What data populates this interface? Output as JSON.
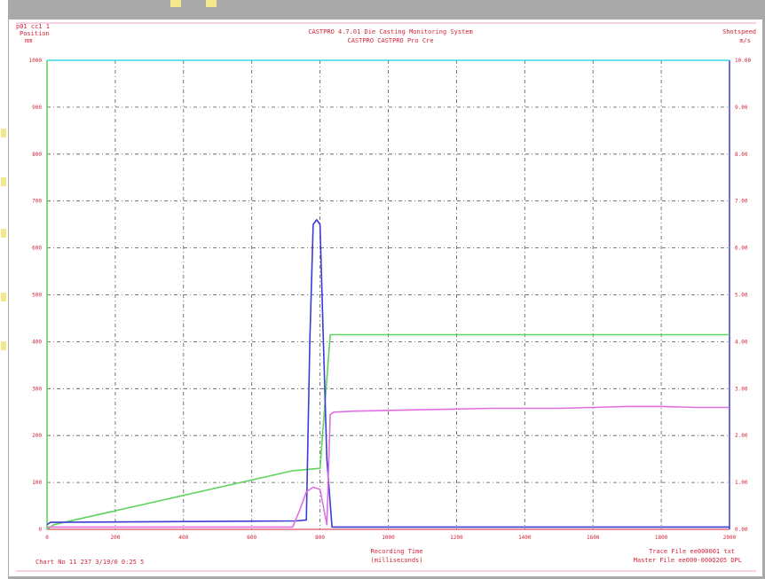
{
  "header": {
    "top_left_line1": "p01 cc1 1",
    "top_left_line2": "Position",
    "top_left_line3": "mm",
    "title": "CASTPRO 4.7.01 Die Casting Monitoring System",
    "subtitle": "CASTPRO CASTPRO Pro Cre",
    "top_right_line1": "Shotspeed",
    "top_right_line2": "m/s"
  },
  "footer": {
    "left": "Chart No 11 237 3/19/0 0:25 5",
    "center_line1": "Recording Time",
    "center_line2": "(milliseconds)",
    "right_line1": "Trace File ee000001 txt",
    "right_line2": "Master File ee000-000Q205 DPL"
  },
  "colors": {
    "background": "#ffffff",
    "frame": "#a9a9a9",
    "text": "#d0243a",
    "grid": "#555555",
    "green_trace": "#5ed45e",
    "blue_trace": "#3b3bd6",
    "magenta_trace": "#e070e0",
    "cyan_line": "#38d8e8"
  },
  "chart_data": {
    "type": "line",
    "xlabel": "Recording Time (milliseconds)",
    "ylabel": "Position mm",
    "y2label": "Shotspeed m/s",
    "xlim": [
      0,
      2000
    ],
    "ylim": [
      0,
      1000
    ],
    "y2lim": [
      0,
      10
    ],
    "grid": true,
    "x_ticks": [
      "0",
      "200",
      "400",
      "600",
      "800",
      "1000",
      "1200",
      "1400",
      "1600",
      "1800",
      "2000"
    ],
    "y_ticks": [
      "0",
      "100",
      "200",
      "300",
      "400",
      "500",
      "600",
      "700",
      "800",
      "900",
      "1000"
    ],
    "y2_ticks": [
      "0.00",
      "1.00",
      "2.00",
      "3.00",
      "4.00",
      "5.00",
      "6.00",
      "7.00",
      "8.00",
      "9.00",
      "10.00"
    ],
    "series": [
      {
        "axis": "left",
        "color": "#5ed45e",
        "x": [
          0,
          0,
          20,
          720,
          800,
          830,
          2000
        ],
        "y": [
          1000,
          0,
          10,
          125,
          130,
          415,
          415
        ]
      },
      {
        "axis": "left",
        "color": "#3b3bd6",
        "x": [
          0,
          10,
          730,
          760,
          770,
          780,
          790,
          800,
          810,
          820,
          835,
          2000
        ],
        "y": [
          10,
          15,
          18,
          20,
          400,
          650,
          660,
          650,
          400,
          150,
          5,
          5
        ]
      },
      {
        "axis": "left",
        "color": "#e070e0",
        "x": [
          0,
          720,
          740,
          760,
          780,
          800,
          820,
          830,
          840,
          900,
          1100,
          1300,
          1500,
          1600,
          1700,
          1800,
          1900,
          2000
        ],
        "y": [
          5,
          5,
          40,
          80,
          90,
          85,
          10,
          245,
          250,
          252,
          255,
          258,
          258,
          260,
          262,
          262,
          260,
          260
        ]
      },
      {
        "axis": "left",
        "color": "#38d8e8",
        "x": [
          0,
          2000
        ],
        "y": [
          1000,
          1000
        ]
      }
    ]
  }
}
